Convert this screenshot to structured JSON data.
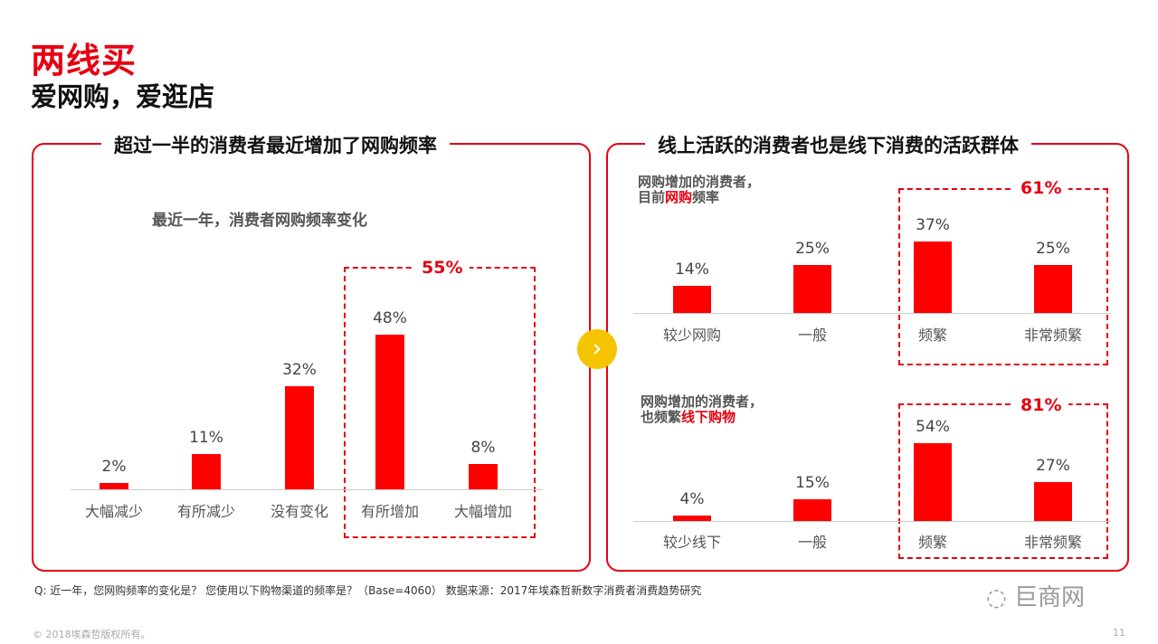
{
  "header": {
    "title": "两线买",
    "subtitle": "爱网购，爱逛店"
  },
  "left_panel": {
    "title": "超过一半的消费者最近增加了网购频率",
    "chart_title": "最近一年，消费者网购频率变化",
    "highlight": "55%"
  },
  "right_panel": {
    "title": "线上活跃的消费者也是线下消费的活跃群体",
    "top_note": {
      "line1": "网购增加的消费者，",
      "line2_pre": "目前",
      "line2_red": "网购",
      "line2_post": "频率"
    },
    "top_highlight": "61%",
    "bottom_note": {
      "line1": "网购增加的消费者，",
      "line2_pre": "也频繁",
      "line2_red": "线下购物"
    },
    "bottom_highlight": "81%"
  },
  "arrow_icon": "chevron-right-icon",
  "footnote": "Q: 近一年，您网购频率的变化是？ 您使用以下购物渠道的频率是？（Base=4060）  数据来源：2017年埃森哲新数字消费者消费趋势研究",
  "watermark": "巨商网",
  "copyright": "© 2018埃森哲版权所有。",
  "page_number": "11",
  "colors": {
    "accent": "#e60012",
    "bar": "#ff0000"
  },
  "chart_data": [
    {
      "type": "bar",
      "title": "最近一年，消费者网购频率变化",
      "categories": [
        "大幅减少",
        "有所减少",
        "没有变化",
        "有所增加",
        "大幅增加"
      ],
      "values": [
        2,
        11,
        32,
        48,
        8
      ],
      "labels": [
        "2%",
        "11%",
        "32%",
        "48%",
        "8%"
      ]
    },
    {
      "type": "bar",
      "categories": [
        "较少网购",
        "一般",
        "频繁",
        "非常频繁"
      ],
      "values": [
        14,
        25,
        37,
        25
      ],
      "labels": [
        "14%",
        "25%",
        "37%",
        "25%"
      ]
    },
    {
      "type": "bar",
      "categories": [
        "较少线下",
        "一般",
        "频繁",
        "非常频繁"
      ],
      "values": [
        4,
        15,
        54,
        27
      ],
      "labels": [
        "4%",
        "15%",
        "54%",
        "27%"
      ]
    }
  ]
}
